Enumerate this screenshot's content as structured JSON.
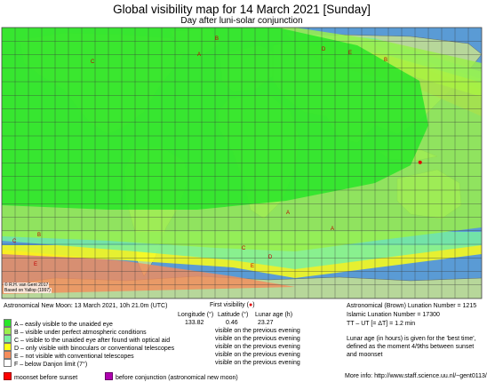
{
  "header": {
    "title": "Global visibility map for 14 March 2021 [Sunday]",
    "subtitle": "Day after luni-solar conjunction"
  },
  "map": {
    "credit_line1": "© R.H. van Gent 2017",
    "credit_line2": "Based on Yallop (1997)",
    "zone_letters": [
      "A",
      "B",
      "C",
      "D",
      "E"
    ],
    "colors": {
      "ocean": "#5a9bd5",
      "land": "#b7d79a",
      "zone_A": "#28e628",
      "zone_B": "#9af04a",
      "zone_C": "#78f0a0",
      "zone_D": "#ffff14",
      "zone_E": "#f58c5a",
      "zone_F": "#ffffff"
    }
  },
  "conjunction": {
    "text": "Astronomical New Moon: 13 March 2021, 10h 21.0m (UTC)"
  },
  "first_visibility": {
    "label": "First visibility (",
    "marker": "●",
    "label_end": ")",
    "col_lon": "Longitude (°)",
    "col_lat": "Latitude (°)",
    "col_age": "Lunar age (h)",
    "lon": "133.82",
    "lat": "0.46",
    "age": "23.27"
  },
  "legend": [
    {
      "label": "A – easily visible to the unaided eye",
      "note": "visible on the previous evening",
      "color": "#28e628"
    },
    {
      "label": "B – visible under perfect atmospheric conditions",
      "note": "visible on the previous evening",
      "color": "#9af04a"
    },
    {
      "label": "C – visible to the unaided eye after found with optical aid",
      "note": "visible on the previous evening",
      "color": "#78f0a0"
    },
    {
      "label": "D – only visible with binoculars or conventional telescopes",
      "note": "visible on the previous evening",
      "color": "#ffff14"
    },
    {
      "label": "E – not visible with conventional telescopes",
      "note": "visible on the previous evening",
      "color": "#f58c5a"
    },
    {
      "label": "F – below Danjon limit (7°)",
      "note": "",
      "color": "#ffffff"
    }
  ],
  "footer_legend": [
    {
      "label": "moonset before sunset",
      "color": "#ff0000"
    },
    {
      "label": "before conjunction (astronomical new moon)",
      "color": "#b000b0"
    }
  ],
  "right_info": {
    "line1": "Astronomical (Brown) Lunation Number = 1215",
    "line2": "Islamic Lunation Number = 17300",
    "line3": "TT – UT [= ΔT] = 1.2 min",
    "line4": "Lunar age (in hours) is given for the 'best time',",
    "line5": "defined as the moment 4/9ths between sunset",
    "line6": "and moonset",
    "more_info": "More info: http://www.staff.science.uu.nl/~gent0113/"
  }
}
